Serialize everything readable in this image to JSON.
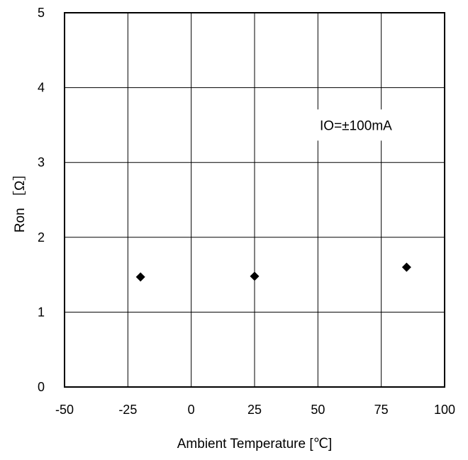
{
  "chart_data": {
    "type": "scatter",
    "title": "",
    "xlabel": "Ambient Temperature [℃]",
    "ylabel": "Ron ［Ω］",
    "xlim": [
      -50,
      100
    ],
    "ylim": [
      0,
      5
    ],
    "x_ticks": [
      -50,
      -25,
      0,
      25,
      50,
      75,
      100
    ],
    "y_ticks": [
      0,
      1,
      2,
      3,
      4,
      5
    ],
    "x_tick_labels": [
      "-50",
      "-25",
      "0",
      "25",
      "50",
      "75",
      "100"
    ],
    "y_tick_labels": [
      "0",
      "1",
      "2",
      "3",
      "4",
      "5"
    ],
    "grid": true,
    "marker": "diamond",
    "marker_color": "#000000",
    "series": [
      {
        "x": [
          -20,
          25,
          85
        ],
        "y": [
          1.47,
          1.48,
          1.6
        ]
      }
    ],
    "annotations": [
      {
        "text": "IO=±100mA",
        "x": 65,
        "y": 3.5
      }
    ]
  }
}
